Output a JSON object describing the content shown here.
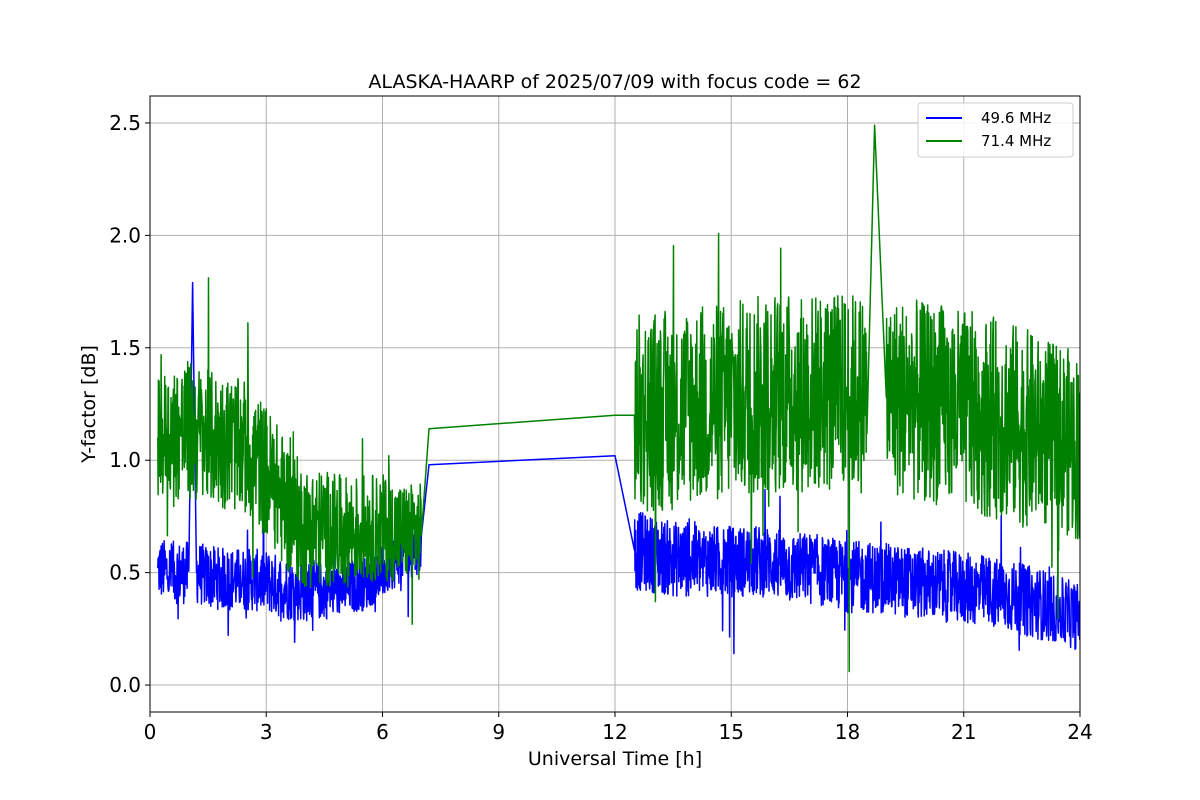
{
  "chart_data": {
    "type": "line",
    "title": "ALASKA-HAARP of 2025/07/09 with focus code = 62",
    "xlabel": "Universal Time [h]",
    "ylabel": "Y-factor [dB]",
    "xlim": [
      0,
      24
    ],
    "ylim": [
      -0.12,
      2.62
    ],
    "xticks": [
      0,
      3,
      6,
      9,
      12,
      15,
      18,
      21,
      24
    ],
    "xtick_labels": [
      "0",
      "3",
      "6",
      "9",
      "12",
      "15",
      "18",
      "21",
      "24"
    ],
    "yticks": [
      0.0,
      0.5,
      1.0,
      1.5,
      2.0,
      2.5
    ],
    "ytick_labels": [
      "0.0",
      "0.5",
      "1.0",
      "1.5",
      "2.0",
      "2.5"
    ],
    "grid": true,
    "legend_position": "top-right",
    "series": [
      {
        "name": "49.6 MHz",
        "color": "#0000ff",
        "x": [
          0.2,
          0.5,
          1.0,
          1.1,
          1.2,
          1.5,
          2.0,
          2.5,
          3.0,
          3.5,
          4.0,
          4.5,
          5.0,
          5.5,
          6.0,
          6.5,
          7.0,
          7.2,
          12.0,
          12.5,
          13.0,
          13.5,
          14.0,
          14.5,
          15.0,
          15.5,
          16.0,
          16.5,
          17.0,
          17.5,
          18.0,
          18.5,
          19.0,
          19.5,
          20.0,
          20.5,
          21.0,
          21.5,
          22.0,
          22.5,
          23.0,
          23.5,
          24.0
        ],
        "y": [
          0.52,
          0.5,
          0.5,
          1.79,
          0.5,
          0.48,
          0.47,
          0.47,
          0.46,
          0.43,
          0.42,
          0.42,
          0.43,
          0.45,
          0.5,
          0.58,
          0.62,
          0.98,
          1.02,
          0.6,
          0.58,
          0.56,
          0.56,
          0.55,
          0.55,
          0.55,
          0.55,
          0.52,
          0.52,
          0.5,
          0.48,
          0.48,
          0.47,
          0.46,
          0.45,
          0.44,
          0.43,
          0.42,
          0.4,
          0.38,
          0.36,
          0.33,
          0.3
        ],
        "band": [
          0.14,
          0.14,
          0.14,
          0.0,
          0.14,
          0.14,
          0.14,
          0.14,
          0.14,
          0.14,
          0.14,
          0.13,
          0.12,
          0.12,
          0.12,
          0.12,
          0.12,
          0.0,
          0.0,
          0.18,
          0.17,
          0.17,
          0.17,
          0.16,
          0.16,
          0.16,
          0.16,
          0.16,
          0.16,
          0.16,
          0.16,
          0.16,
          0.16,
          0.16,
          0.16,
          0.16,
          0.16,
          0.16,
          0.16,
          0.16,
          0.16,
          0.15,
          0.15
        ]
      },
      {
        "name": "71.4 MHz",
        "color": "#008000",
        "x": [
          0.2,
          0.5,
          1.0,
          1.5,
          2.0,
          2.5,
          3.0,
          3.5,
          4.0,
          4.5,
          5.0,
          5.5,
          6.0,
          6.5,
          7.0,
          7.2,
          12.0,
          12.5,
          13.0,
          13.5,
          14.0,
          14.5,
          15.0,
          15.5,
          16.0,
          16.5,
          17.0,
          17.5,
          18.0,
          18.5,
          18.7,
          19.0,
          19.5,
          20.0,
          20.5,
          21.0,
          21.5,
          22.0,
          22.5,
          23.0,
          23.5,
          24.0
        ],
        "y": [
          1.1,
          1.12,
          1.13,
          1.1,
          1.08,
          1.05,
          0.95,
          0.8,
          0.7,
          0.7,
          0.68,
          0.7,
          0.7,
          0.68,
          0.68,
          1.14,
          1.2,
          1.2,
          1.22,
          1.22,
          1.25,
          1.25,
          1.26,
          1.28,
          1.3,
          1.3,
          1.3,
          1.3,
          1.3,
          1.3,
          2.49,
          1.28,
          1.28,
          1.25,
          1.25,
          1.22,
          1.2,
          1.18,
          1.15,
          1.12,
          1.1,
          1.05
        ],
        "band": [
          0.28,
          0.3,
          0.32,
          0.3,
          0.3,
          0.3,
          0.3,
          0.3,
          0.27,
          0.26,
          0.25,
          0.24,
          0.24,
          0.22,
          0.22,
          0.0,
          0.0,
          0.45,
          0.45,
          0.45,
          0.45,
          0.45,
          0.45,
          0.45,
          0.45,
          0.45,
          0.45,
          0.45,
          0.45,
          0.45,
          0.0,
          0.45,
          0.45,
          0.45,
          0.45,
          0.45,
          0.45,
          0.45,
          0.45,
          0.42,
          0.42,
          0.42
        ]
      }
    ]
  }
}
